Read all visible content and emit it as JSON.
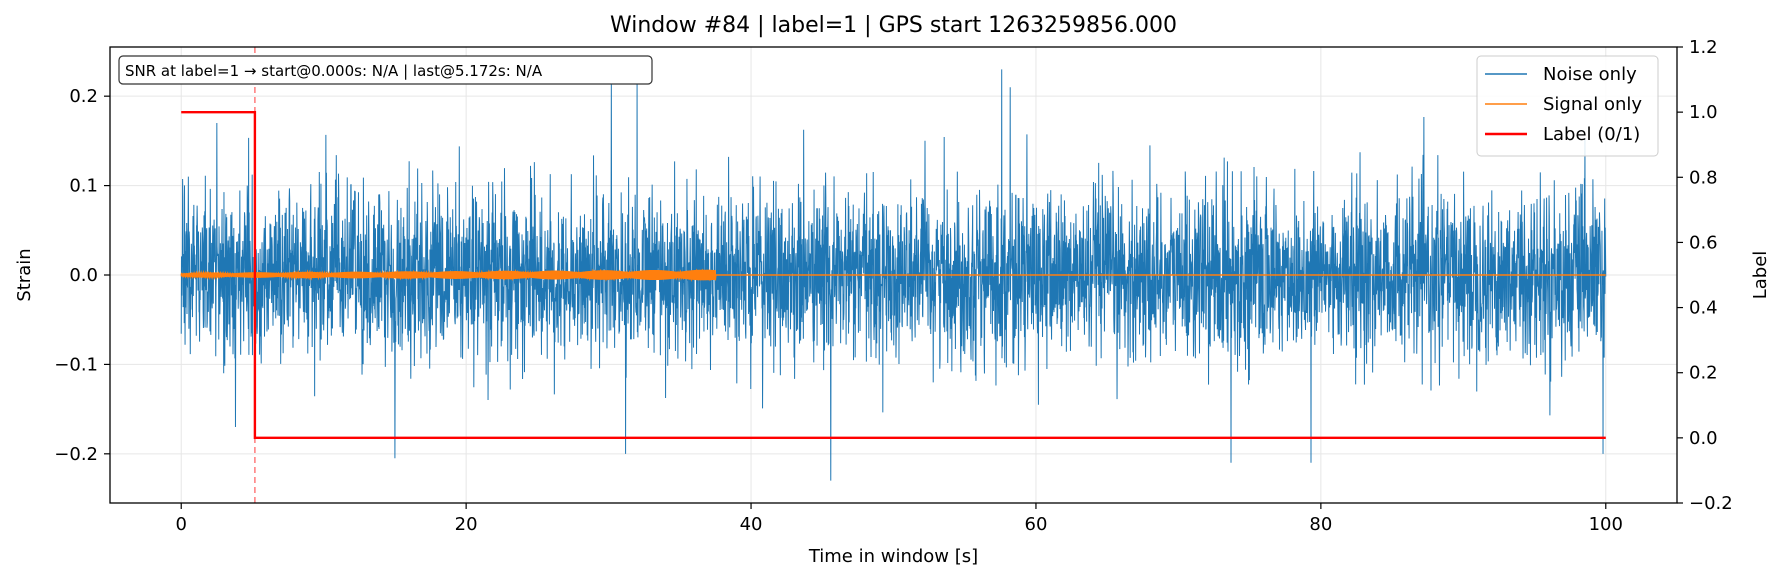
{
  "chart_data": {
    "type": "line",
    "title": "Window #84  |  label=1  |  GPS start 1263259856.000",
    "xlabel": "Time in window [s]",
    "ylabel": "Strain",
    "y2label": "Label",
    "xlim": [
      -5,
      105
    ],
    "ylim": [
      -0.255,
      0.255
    ],
    "y2lim": [
      -0.2,
      1.2
    ],
    "x_ticks": [
      0,
      20,
      40,
      60,
      80,
      100
    ],
    "y_ticks": [
      -0.2,
      -0.1,
      0.0,
      0.1,
      0.2
    ],
    "y2_ticks": [
      -0.2,
      0.0,
      0.2,
      0.4,
      0.6,
      0.8,
      1.0,
      1.2
    ],
    "x_tick_labels": [
      "0",
      "20",
      "40",
      "60",
      "80",
      "100"
    ],
    "y_tick_labels": [
      "−0.2",
      "−0.1",
      "0.0",
      "0.1",
      "0.2"
    ],
    "y2_tick_labels": [
      "−0.2",
      "0.0",
      "0.2",
      "0.4",
      "0.6",
      "0.8",
      "1.0",
      "1.2"
    ],
    "grid": true,
    "legend_position": "top-right",
    "annotation": "SNR at label=1 → start@0.000s: N/A | last@5.172s: N/A",
    "series": [
      {
        "name": "Noise only",
        "color": "#1f77b4",
        "axis": "left",
        "x_range": [
          0,
          100
        ],
        "typical_envelope": [
          -0.11,
          0.11
        ],
        "peaks": [
          {
            "x": 0.5,
            "y": 0.11
          },
          {
            "x": 2.5,
            "y": 0.17
          },
          {
            "x": 3.8,
            "y": -0.17
          },
          {
            "x": 15.0,
            "y": -0.205
          },
          {
            "x": 30.2,
            "y": 0.215
          },
          {
            "x": 31.2,
            "y": -0.2
          },
          {
            "x": 32.0,
            "y": 0.215
          },
          {
            "x": 45.6,
            "y": -0.23
          },
          {
            "x": 57.6,
            "y": 0.23
          },
          {
            "x": 58.2,
            "y": 0.21
          },
          {
            "x": 73.7,
            "y": -0.21
          },
          {
            "x": 79.3,
            "y": -0.21
          },
          {
            "x": 99.8,
            "y": -0.2
          }
        ]
      },
      {
        "name": "Signal only",
        "color": "#ff7f0e",
        "axis": "left",
        "x_range": [
          0,
          100
        ],
        "active_until": 37.5,
        "amplitude_max": 0.006
      },
      {
        "name": "Label (0/1)",
        "color": "#ff0000",
        "axis": "right",
        "x": [
          0,
          5.172,
          5.172,
          100
        ],
        "y": [
          1,
          1,
          0,
          0
        ]
      }
    ],
    "vlines": [
      {
        "x": 5.172,
        "color": "#ff0000",
        "style": "dashed"
      }
    ]
  }
}
